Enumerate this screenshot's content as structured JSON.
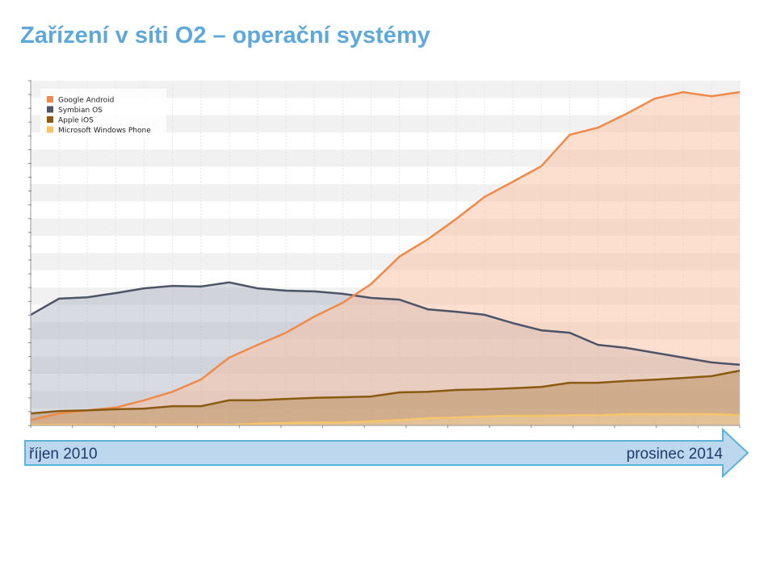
{
  "slide": {
    "title": "Zařízení v síti O2 – operační systémy"
  },
  "timeline": {
    "start_label": "říjen 2010",
    "end_label": "prosinec 2014",
    "fill": "#bdd7ee",
    "stroke": "#5bb3d8"
  },
  "chart_data": {
    "type": "area",
    "title": "",
    "xlabel": "",
    "ylabel": "",
    "y_scale_note": "",
    "ylim": [
      0,
      100
    ],
    "grid": true,
    "legend_position": "top-left",
    "x": [
      "2010-10",
      "2010-12",
      "2011-02",
      "2011-04",
      "2011-06",
      "2011-08",
      "2011-10",
      "2011-12",
      "2012-02",
      "2012-04",
      "2012-06",
      "2012-08",
      "2012-10",
      "2012-12",
      "2013-02",
      "2013-04",
      "2013-06",
      "2013-08",
      "2013-10",
      "2013-12",
      "2014-02",
      "2014-04",
      "2014-06",
      "2014-08",
      "2014-10",
      "2014-12"
    ],
    "series": [
      {
        "name": "Google Android",
        "color": "#ef8a4a",
        "fill": "#f9bfa0",
        "values": [
          1.6,
          3.5,
          4.4,
          5.2,
          7.3,
          9.8,
          13.3,
          19.7,
          23.4,
          26.9,
          31.6,
          35.6,
          41,
          49,
          54,
          59.9,
          66.3,
          70.7,
          75.2,
          84.3,
          86.4,
          90.4,
          94.8,
          96.7,
          95.5,
          96.7
        ]
      },
      {
        "name": "Symbian OS",
        "color": "#4b5567",
        "fill": "#a9b0bd",
        "values": [
          32.1,
          36.8,
          37.2,
          38.4,
          39.8,
          40.5,
          40.3,
          41.5,
          39.8,
          39.1,
          38.9,
          38.2,
          37,
          36.5,
          33.7,
          33,
          32.1,
          29.7,
          27.6,
          26.9,
          23.4,
          22.5,
          21.1,
          19.7,
          18.3,
          17.6
        ]
      },
      {
        "name": "Apple iOS",
        "color": "#8b5a12",
        "fill": "#b08850",
        "values": [
          3.5,
          4.2,
          4.4,
          4.7,
          4.9,
          5.6,
          5.6,
          7.3,
          7.3,
          7.7,
          8,
          8.2,
          8.4,
          9.6,
          9.8,
          10.3,
          10.5,
          10.8,
          11.2,
          12.4,
          12.4,
          12.9,
          13.3,
          13.8,
          14.3,
          15.9
        ]
      },
      {
        "name": "Microsoft Windows Phone",
        "color": "#f7c46c",
        "fill": "#f7d9a0",
        "values": [
          0.2,
          0.2,
          0.2,
          0.2,
          0.2,
          0.2,
          0.2,
          0.2,
          0.5,
          0.7,
          0.9,
          0.9,
          1.2,
          1.6,
          2.1,
          2.3,
          2.6,
          2.8,
          2.8,
          3.0,
          3.0,
          3.3,
          3.3,
          3.3,
          3.3,
          3.0
        ]
      }
    ]
  }
}
